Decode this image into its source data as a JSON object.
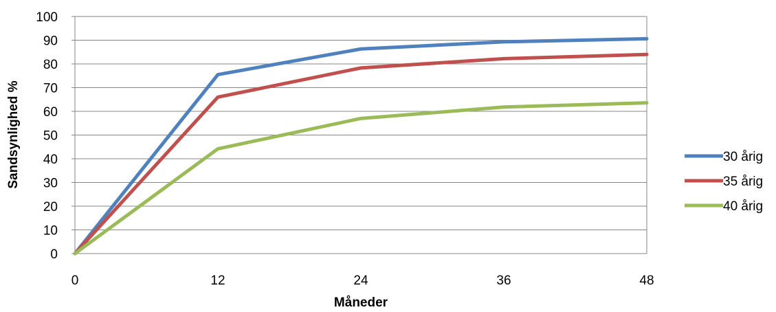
{
  "chart_data": {
    "type": "line",
    "title": "",
    "xlabel": "Måneder",
    "ylabel": "Sandsynlighed %",
    "x": [
      0,
      12,
      24,
      36,
      48
    ],
    "x_tick_labels": [
      "0",
      "12",
      "24",
      "36",
      "48"
    ],
    "y_tick_labels": [
      "0",
      "10",
      "20",
      "30",
      "40",
      "50",
      "60",
      "70",
      "80",
      "90",
      "100"
    ],
    "xlim": [
      0,
      48
    ],
    "ylim": [
      0,
      100
    ],
    "grid": "horizontal",
    "legend_position": "right",
    "series": [
      {
        "name": "30 årig",
        "color": "#4f81bd",
        "values": [
          0,
          75.5,
          86.3,
          89.3,
          90.6
        ]
      },
      {
        "name": "35 årig",
        "color": "#c0504d",
        "values": [
          0,
          66.0,
          78.3,
          82.2,
          84.0
        ]
      },
      {
        "name": "40 årig",
        "color": "#9bbb59",
        "values": [
          0,
          44.2,
          57.0,
          61.8,
          63.6
        ]
      }
    ]
  }
}
